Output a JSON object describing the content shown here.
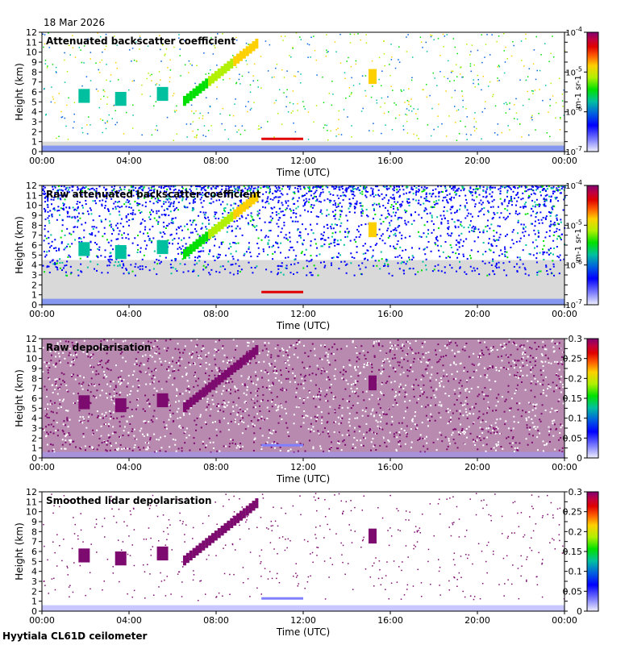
{
  "date_label": "18 Mar 2026",
  "footer_label": "Hyytiala CL61D ceilometer",
  "colors": {
    "background_grey": "#d9d9d9",
    "depol_purple": "#7d0a6e",
    "frame": "#000000"
  },
  "chart_data": [
    {
      "type": "heatmap",
      "title": "Attenuated backscatter coefficient",
      "xlabel": "Time (UTC)",
      "ylabel": "Height (km)",
      "x_ticks": [
        "00:00",
        "04:00",
        "08:00",
        "12:00",
        "16:00",
        "20:00",
        "00:00"
      ],
      "y_ticks": [
        "0",
        "1",
        "2",
        "3",
        "4",
        "5",
        "6",
        "7",
        "8",
        "9",
        "10",
        "11",
        "12"
      ],
      "ylim": [
        0,
        12
      ],
      "colorbar": {
        "scale": "log",
        "ticks": [
          "10-7",
          "10-6",
          "10-5",
          "10-4"
        ],
        "range": [
          1e-07,
          0.0001
        ],
        "unit": "m-1 sr-1"
      }
    },
    {
      "type": "heatmap",
      "title": "Raw attenuated backscatter coefficient",
      "xlabel": "Time (UTC)",
      "ylabel": "Height (km)",
      "x_ticks": [
        "00:00",
        "04:00",
        "08:00",
        "12:00",
        "16:00",
        "20:00",
        "00:00"
      ],
      "y_ticks": [
        "0",
        "1",
        "2",
        "3",
        "4",
        "5",
        "6",
        "7",
        "8",
        "9",
        "10",
        "11",
        "12"
      ],
      "ylim": [
        0,
        12
      ],
      "colorbar": {
        "scale": "log",
        "ticks": [
          "10-7",
          "10-6",
          "10-5",
          "10-4"
        ],
        "range": [
          1e-07,
          0.0001
        ],
        "unit": "m-1 sr-1"
      }
    },
    {
      "type": "heatmap",
      "title": "Raw depolarisation",
      "xlabel": "Time (UTC)",
      "ylabel": "Height (km)",
      "x_ticks": [
        "00:00",
        "04:00",
        "08:00",
        "12:00",
        "16:00",
        "20:00",
        "00:00"
      ],
      "y_ticks": [
        "0",
        "1",
        "2",
        "3",
        "4",
        "5",
        "6",
        "7",
        "8",
        "9",
        "10",
        "11",
        "12"
      ],
      "ylim": [
        0,
        12
      ],
      "colorbar": {
        "scale": "linear",
        "ticks": [
          "0",
          "0.05",
          "0.1",
          "0.15",
          "0.2",
          "0.25",
          "0.3"
        ],
        "range": [
          0,
          0.3
        ]
      }
    },
    {
      "type": "heatmap",
      "title": "Smoothed lidar depolarisation",
      "xlabel": "Time (UTC)",
      "ylabel": "Height (km)",
      "x_ticks": [
        "00:00",
        "04:00",
        "08:00",
        "12:00",
        "16:00",
        "20:00",
        "00:00"
      ],
      "y_ticks": [
        "0",
        "1",
        "2",
        "3",
        "4",
        "5",
        "6",
        "7",
        "8",
        "9",
        "10",
        "11",
        "12"
      ],
      "ylim": [
        0,
        12
      ],
      "colorbar": {
        "scale": "linear",
        "ticks": [
          "0",
          "0.05",
          "0.1",
          "0.15",
          "0.2",
          "0.25",
          "0.3"
        ],
        "range": [
          0,
          0.3
        ]
      }
    }
  ]
}
